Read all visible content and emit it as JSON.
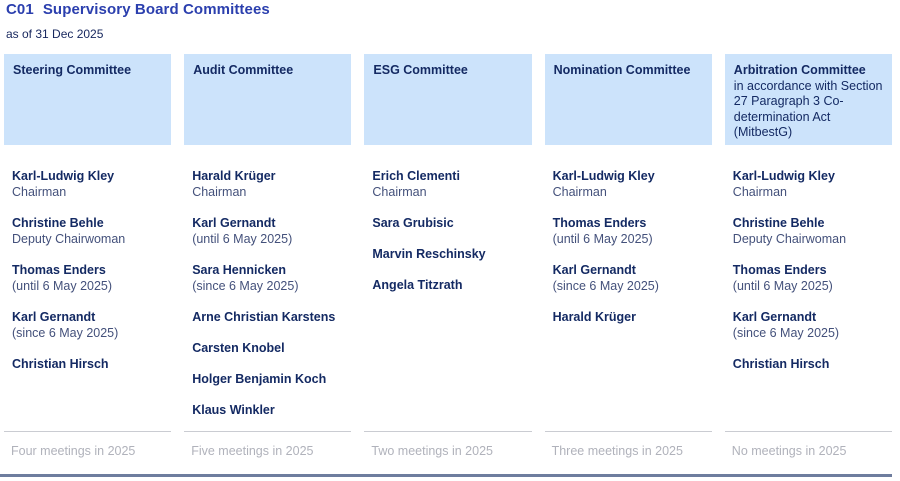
{
  "header": {
    "code": "C01",
    "title": "Supervisory Board Committees",
    "subtitle": "as of 31 Dec 2025"
  },
  "colors": {
    "title_blue": "#2b3fae",
    "text_navy": "#142a63",
    "role_navy_gray": "#44517b",
    "header_box_bg": "#cce3fb",
    "footer_gray": "#b0b2bb",
    "separator_gray": "#caccd2",
    "bottom_bar_slate": "#6e7d9e"
  },
  "committees": [
    {
      "name": "Steering Committee",
      "note": "",
      "members": [
        {
          "name": "Karl-Ludwig Kley",
          "role": "Chairman"
        },
        {
          "name": "Christine Behle",
          "role": "Deputy Chairwoman"
        },
        {
          "name": "Thomas Enders",
          "role": "(until 6 May 2025)"
        },
        {
          "name": "Karl Gernandt",
          "role": "(since 6 May 2025)"
        },
        {
          "name": "Christian Hirsch",
          "role": ""
        }
      ],
      "meetings": "Four meetings in 2025"
    },
    {
      "name": "Audit Committee",
      "note": "",
      "members": [
        {
          "name": "Harald Krüger",
          "role": "Chairman"
        },
        {
          "name": "Karl Gernandt",
          "role": "(until 6 May 2025)"
        },
        {
          "name": "Sara Hennicken",
          "role": "(since 6 May 2025)"
        },
        {
          "name": "Arne Christian Karstens",
          "role": ""
        },
        {
          "name": "Carsten Knobel",
          "role": ""
        },
        {
          "name": "Holger Benjamin Koch",
          "role": ""
        },
        {
          "name": "Klaus Winkler",
          "role": ""
        }
      ],
      "meetings": "Five meetings in 2025"
    },
    {
      "name": "ESG Committee",
      "note": "",
      "members": [
        {
          "name": "Erich Clementi",
          "role": "Chairman"
        },
        {
          "name": "Sara Grubisic",
          "role": ""
        },
        {
          "name": "Marvin Reschinsky",
          "role": ""
        },
        {
          "name": "Angela Titzrath",
          "role": ""
        }
      ],
      "meetings": "Two meetings in 2025"
    },
    {
      "name": "Nomination Committee",
      "note": "",
      "members": [
        {
          "name": "Karl-Ludwig Kley",
          "role": "Chairman"
        },
        {
          "name": "Thomas Enders",
          "role": "(until 6 May 2025)"
        },
        {
          "name": "Karl Gernandt",
          "role": "(since 6 May 2025)"
        },
        {
          "name": "Harald Krüger",
          "role": ""
        }
      ],
      "meetings": "Three meetings in 2025"
    },
    {
      "name": "Arbitration Committee",
      "note": "in accordance with Section 27 Paragraph 3 Co-determination Act (MitbestG)",
      "members": [
        {
          "name": "Karl-Ludwig Kley",
          "role": "Chairman"
        },
        {
          "name": "Christine Behle",
          "role": "Deputy Chairwoman"
        },
        {
          "name": "Thomas Enders",
          "role": "(until 6 May 2025)"
        },
        {
          "name": "Karl Gernandt",
          "role": "(since 6 May 2025)"
        },
        {
          "name": "Christian Hirsch",
          "role": ""
        }
      ],
      "meetings": "No meetings in 2025"
    }
  ]
}
